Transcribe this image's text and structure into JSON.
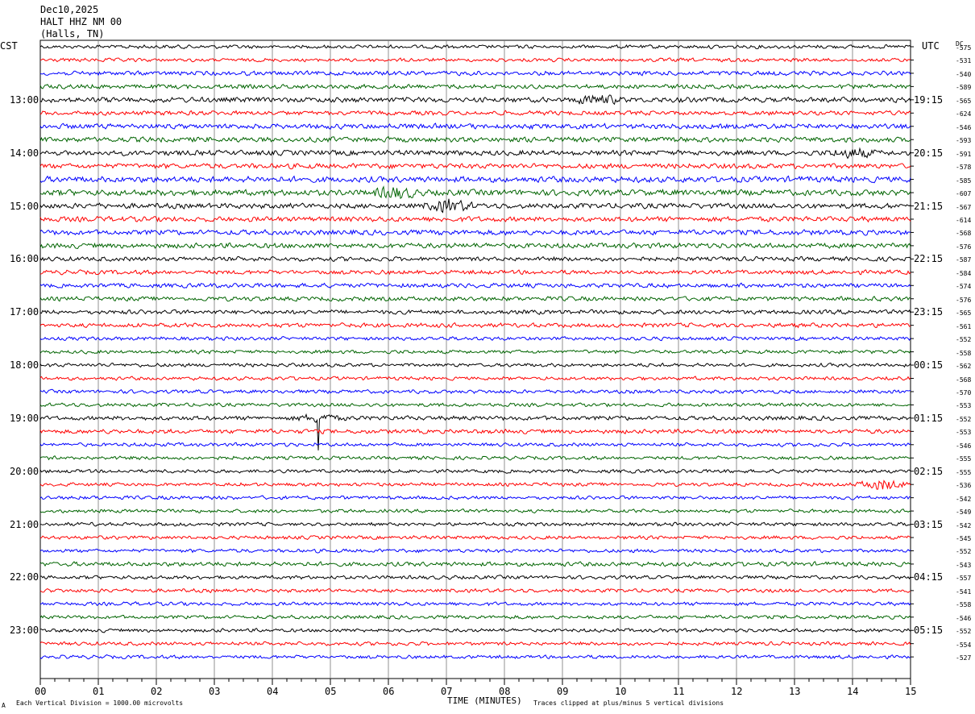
{
  "header": {
    "date": "Dec10,2025",
    "station": "HALT HHZ NM 00",
    "location": "(Halls, TN)"
  },
  "left_tz": "CST",
  "right_tz": "UTC",
  "dc_label": "DC",
  "footer": {
    "scale_note": "Each Vertical Division = 1000.00 microvolts",
    "clip_note": "Traces clipped at plus/minus 5 vertical divisions",
    "mark": "A"
  },
  "chart_data": {
    "type": "line",
    "xlabel": "TIME (MINUTES)",
    "xlim": [
      0,
      15
    ],
    "x_ticks": [
      "00",
      "01",
      "02",
      "03",
      "04",
      "05",
      "06",
      "07",
      "08",
      "09",
      "10",
      "11",
      "12",
      "13",
      "14",
      "15"
    ],
    "trace_colors": [
      "#000000",
      "#ff0000",
      "#0000ff",
      "#006400"
    ],
    "left_time_labels": [
      "13:00",
      "14:00",
      "15:00",
      "16:00",
      "17:00",
      "18:00",
      "19:00",
      "20:00",
      "21:00",
      "22:00",
      "23:00"
    ],
    "right_time_labels": [
      "19:15",
      "20:15",
      "21:15",
      "22:15",
      "23:15",
      "00:15",
      "01:15",
      "02:15",
      "03:15",
      "04:15",
      "05:15"
    ],
    "dc_offsets": [
      -575,
      -531,
      -540,
      -589,
      -565,
      -624,
      -546,
      -593,
      -591,
      -578,
      -585,
      -607,
      -567,
      -614,
      -568,
      -576,
      -587,
      -584,
      -574,
      -576,
      -565,
      -561,
      -552,
      -558,
      -562,
      -568,
      -570,
      -553,
      -552,
      -553,
      -546,
      -555,
      -555,
      -536,
      -542,
      -549,
      -542,
      -545,
      -552,
      -543,
      -557,
      -541,
      -558,
      -546,
      -552,
      -554,
      -527
    ],
    "trace_amplitude": [
      2,
      2,
      2.5,
      2.5,
      3,
      2.5,
      3,
      3,
      3,
      3,
      3.5,
      3.5,
      3,
      3,
      3,
      3,
      2.5,
      2.5,
      2.5,
      2.5,
      2.5,
      2.5,
      2,
      2,
      2,
      2,
      2,
      2,
      2.5,
      2.5,
      2,
      2,
      2,
      2,
      2,
      2,
      2,
      2,
      2,
      2.5,
      2,
      2,
      2,
      2,
      2,
      2,
      2
    ],
    "events": [
      {
        "trace": 4,
        "minute": 9.6,
        "amp": 5
      },
      {
        "trace": 8,
        "minute": 14.0,
        "amp": 5
      },
      {
        "trace": 11,
        "minute": 6.1,
        "amp": 6
      },
      {
        "trace": 12,
        "minute": 7.05,
        "amp": 7
      },
      {
        "trace": 28,
        "minute": 4.8,
        "amp": 40
      },
      {
        "trace": 33,
        "minute": 14.5,
        "amp": 6
      }
    ]
  }
}
